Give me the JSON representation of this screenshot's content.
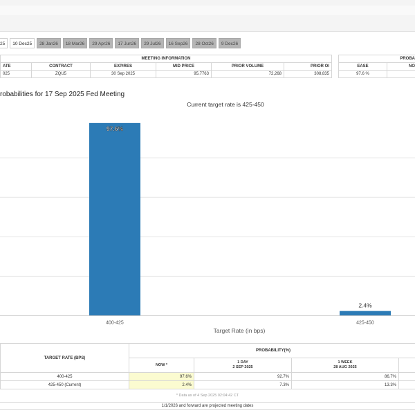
{
  "tabs": [
    "25",
    "10 Dec25",
    "28 Jan26",
    "18 Mar26",
    "29 Apr26",
    "17 Jun26",
    "29 Jul26",
    "16 Sep26",
    "28 Oct26",
    "9 Dec26"
  ],
  "meeting_info": {
    "header": "MEETING INFORMATION",
    "columns": [
      "ATE",
      "CONTRACT",
      "EXPIRES",
      "MID PRICE",
      "PRIOR VOLUME",
      "PRIOR OI"
    ],
    "row": [
      "025",
      "ZQU5",
      "30 Sep 2025",
      "95.7763",
      "72,268",
      "308,835"
    ]
  },
  "probabilities_panel": {
    "header": "PROBA",
    "columns": [
      "EASE",
      "NO"
    ],
    "row": [
      "97.6 %",
      ""
    ]
  },
  "chart_title": "robabilities for 17 Sep 2025 Fed Meeting",
  "chart_data": {
    "type": "bar",
    "title": "Current target rate is 425-450",
    "xlabel": "Target Rate (in bps)",
    "ylabel": "",
    "categories": [
      "400-425",
      "425-450"
    ],
    "values": [
      97.6,
      2.4
    ],
    "value_labels": [
      "97.6%",
      "2.4%"
    ],
    "ylim": [
      0,
      100
    ],
    "grid": true,
    "bar_color": "#2c7bb6"
  },
  "bottom_table": {
    "col1_header": "TARGET RATE (BPS)",
    "group_header": "PROBABILITY(%)",
    "sub_headers": [
      {
        "line1": "NOW *",
        "line2": ""
      },
      {
        "line1": "1 DAY",
        "line2": "2 SEP 2025"
      },
      {
        "line1": "1 WEEK",
        "line2": "28 AUG 2025"
      }
    ],
    "rows": [
      {
        "rate": "400-425",
        "values": [
          "97.6%",
          "92.7%",
          "86.7%"
        ]
      },
      {
        "rate": "425-450 (Current)",
        "values": [
          "2.4%",
          "7.3%",
          "13.3%"
        ]
      }
    ]
  },
  "data_note": "* Data as of 4 Sep 2025 02:04:42 CT",
  "footnote": "1/1/2026 and forward are projected meeting dates"
}
